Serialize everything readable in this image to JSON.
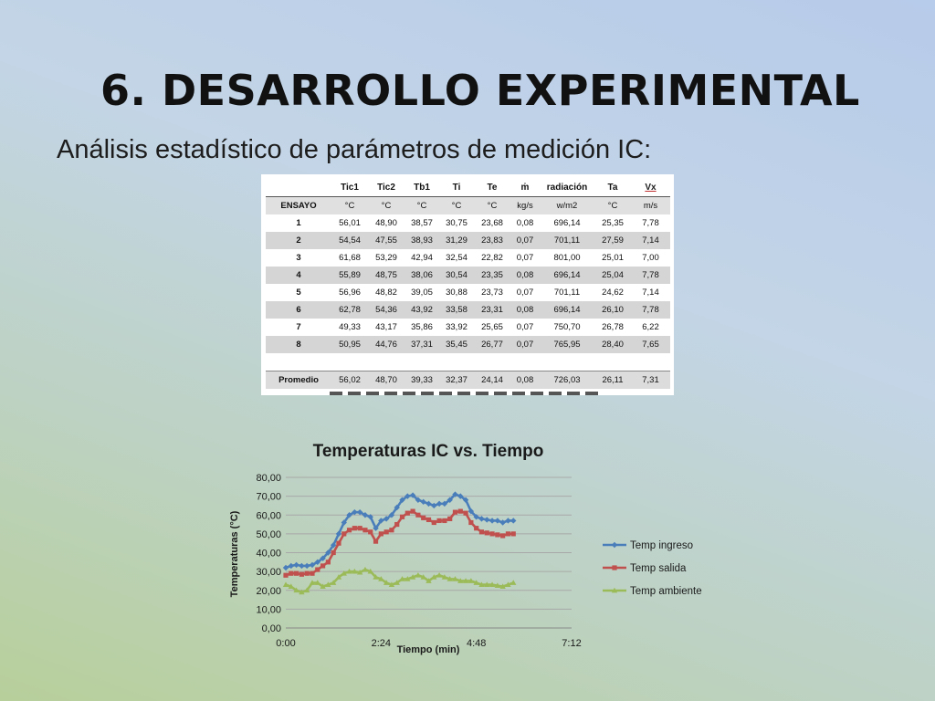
{
  "slide": {
    "title": "6. DESARROLLO EXPERIMENTAL",
    "subtitle": "Análisis estadístico de parámetros de medición IC:"
  },
  "table": {
    "headers": [
      "",
      "Tic1",
      "Tic2",
      "Tb1",
      "Ti",
      "Te",
      "ṁ",
      "radiación",
      "Ta",
      "Vx"
    ],
    "units": [
      "ENSAYO",
      "°C",
      "°C",
      "°C",
      "°C",
      "°C",
      "kg/s",
      "w/m2",
      "°C",
      "m/s"
    ],
    "rows": [
      [
        "1",
        "56,01",
        "48,90",
        "38,57",
        "30,75",
        "23,68",
        "0,08",
        "696,14",
        "25,35",
        "7,78"
      ],
      [
        "2",
        "54,54",
        "47,55",
        "38,93",
        "31,29",
        "23,83",
        "0,07",
        "701,11",
        "27,59",
        "7,14"
      ],
      [
        "3",
        "61,68",
        "53,29",
        "42,94",
        "32,54",
        "22,82",
        "0,07",
        "801,00",
        "25,01",
        "7,00"
      ],
      [
        "4",
        "55,89",
        "48,75",
        "38,06",
        "30,54",
        "23,35",
        "0,08",
        "696,14",
        "25,04",
        "7,78"
      ],
      [
        "5",
        "56,96",
        "48,82",
        "39,05",
        "30,88",
        "23,73",
        "0,07",
        "701,11",
        "24,62",
        "7,14"
      ],
      [
        "6",
        "62,78",
        "54,36",
        "43,92",
        "33,58",
        "23,31",
        "0,08",
        "696,14",
        "26,10",
        "7,78"
      ],
      [
        "7",
        "49,33",
        "43,17",
        "35,86",
        "33,92",
        "25,65",
        "0,07",
        "750,70",
        "26,78",
        "6,22"
      ],
      [
        "8",
        "50,95",
        "44,76",
        "37,31",
        "35,45",
        "26,77",
        "0,07",
        "765,95",
        "28,40",
        "7,65"
      ]
    ],
    "average": [
      "Promedio",
      "56,02",
      "48,70",
      "39,33",
      "32,37",
      "24,14",
      "0,08",
      "726,03",
      "26,11",
      "7,31"
    ]
  },
  "chart_data": {
    "type": "line",
    "title": "Temperaturas IC vs. Tiempo",
    "xlabel": "Tiempo (min)",
    "ylabel": "Temperaturas (°C)",
    "xlim": [
      0,
      432
    ],
    "ylim": [
      0,
      80
    ],
    "x_ticks": [
      "0:00",
      "2:24",
      "4:48",
      "7:12"
    ],
    "y_ticks": [
      "0,00",
      "10,00",
      "20,00",
      "30,00",
      "40,00",
      "50,00",
      "60,00",
      "70,00",
      "80,00"
    ],
    "x_unit": "minutes",
    "x": [
      0,
      8,
      16,
      24,
      32,
      40,
      48,
      56,
      64,
      72,
      80,
      88,
      96,
      104,
      112,
      120,
      128,
      136,
      144,
      152,
      160,
      168,
      176,
      184,
      192,
      200,
      208,
      216,
      224,
      232,
      240,
      248,
      256,
      264,
      272,
      280,
      288,
      296,
      304,
      312,
      320,
      328,
      336,
      344
    ],
    "series": [
      {
        "name": "Temp ingreso",
        "color": "#4a7ebb",
        "marker": "diamond",
        "values": [
          32,
          33,
          33.5,
          33,
          33,
          33.5,
          35,
          37,
          40,
          44,
          50,
          56,
          60,
          61.5,
          61.5,
          60,
          59,
          53,
          57,
          58,
          60,
          64,
          68,
          70,
          70.5,
          68,
          67,
          66,
          65,
          66,
          66,
          68,
          71,
          70,
          68,
          62,
          59,
          58,
          57.5,
          57,
          57,
          56,
          57,
          57
        ]
      },
      {
        "name": "Temp salida",
        "color": "#c0504d",
        "marker": "square",
        "values": [
          28,
          29,
          29,
          28.5,
          29,
          29,
          31,
          33,
          35,
          40,
          45,
          50,
          52,
          53,
          53,
          52,
          51,
          46,
          50,
          51,
          52,
          55,
          59,
          61,
          62,
          60,
          58.5,
          57.5,
          56,
          57,
          57,
          58,
          61.5,
          62,
          61,
          56,
          53,
          51,
          50.5,
          50,
          49.5,
          49,
          50,
          50
        ]
      },
      {
        "name": "Temp ambiente",
        "color": "#9bbb59",
        "marker": "triangle",
        "values": [
          23,
          22,
          20,
          19,
          20,
          24,
          24,
          22,
          23,
          24,
          27,
          29,
          30,
          30,
          29.5,
          31,
          30,
          27,
          26,
          24,
          23,
          24,
          26,
          26,
          27,
          28,
          27,
          25,
          27,
          28,
          27,
          26,
          26,
          25,
          25,
          25,
          24,
          23,
          23,
          23,
          22.5,
          22,
          23,
          24
        ]
      }
    ],
    "legend_position": "right",
    "grid": true
  }
}
